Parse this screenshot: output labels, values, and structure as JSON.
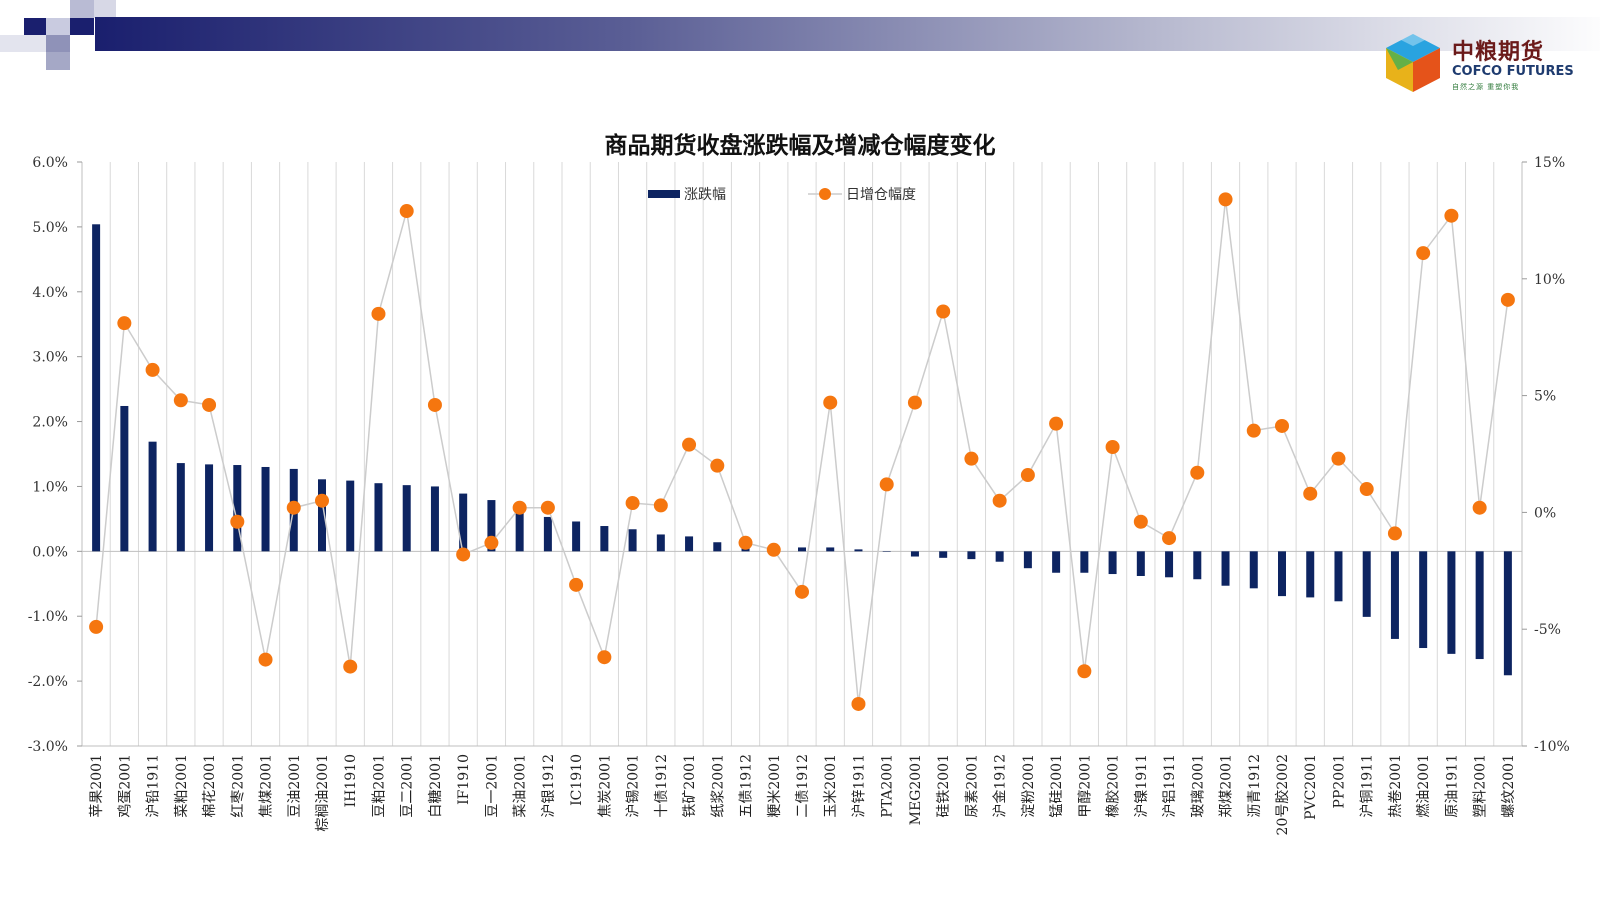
{
  "branding": {
    "company_cn": "中粮期货",
    "company_en": "COFCO FUTURES",
    "tagline": "自然之源  重塑你我",
    "accent": "#1a1f6e"
  },
  "chart_data": {
    "type": "bar+line",
    "title": "商品期货收盘涨跌幅及增减仓幅度变化",
    "legend": [
      "涨跌幅",
      "日增仓幅度"
    ],
    "legend_position": "top-center",
    "bar_color": "#0d2461",
    "line_color": "#cccccc",
    "marker_color": "#f5760f",
    "y_left": {
      "min": -3.0,
      "max": 6.0,
      "step": 1.0,
      "tick_labels": [
        "-3.0%",
        "-2.0%",
        "-1.0%",
        "0.0%",
        "1.0%",
        "2.0%",
        "3.0%",
        "4.0%",
        "5.0%",
        "6.0%"
      ]
    },
    "y_right": {
      "min": -10,
      "max": 15,
      "step": 5,
      "tick_labels": [
        "-10%",
        "-5%",
        "0%",
        "5%",
        "10%",
        "15%"
      ]
    },
    "categories": [
      "苹果2001",
      "鸡蛋2001",
      "沪铅1911",
      "菜粕2001",
      "棉花2001",
      "红枣2001",
      "焦煤2001",
      "豆油2001",
      "棕榈油2001",
      "IH1910",
      "豆粕2001",
      "豆二2001",
      "白糖2001",
      "IF1910",
      "豆一2001",
      "菜油2001",
      "沪银1912",
      "IC1910",
      "焦炭2001",
      "沪锡2001",
      "十债1912",
      "铁矿2001",
      "纸浆2001",
      "五债1912",
      "粳米2001",
      "二债1912",
      "玉米2001",
      "沪锌1911",
      "PTA2001",
      "MEG2001",
      "硅铁2001",
      "尿素2001",
      "沪金1912",
      "淀粉2001",
      "锰硅2001",
      "甲醇2001",
      "橡胶2001",
      "沪镍1911",
      "沪铝1911",
      "玻璃2001",
      "郑煤2001",
      "沥青1912",
      "20号胶2002",
      "PVC2001",
      "PP2001",
      "沪铜1911",
      "热卷2001",
      "燃油2001",
      "原油1911",
      "塑料2001",
      "螺纹2001"
    ],
    "series": [
      {
        "name": "涨跌幅",
        "type": "bar",
        "axis": "left",
        "unit": "%",
        "values": [
          5.04,
          2.24,
          1.69,
          1.36,
          1.34,
          1.33,
          1.3,
          1.27,
          1.11,
          1.09,
          1.05,
          1.02,
          1.0,
          0.89,
          0.79,
          0.63,
          0.53,
          0.46,
          0.39,
          0.34,
          0.26,
          0.23,
          0.14,
          0.09,
          0.08,
          0.06,
          0.06,
          0.03,
          0.0,
          -0.08,
          -0.1,
          -0.12,
          -0.16,
          -0.26,
          -0.33,
          -0.33,
          -0.35,
          -0.38,
          -0.4,
          -0.43,
          -0.53,
          -0.57,
          -0.69,
          -0.71,
          -0.77,
          -1.01,
          -1.35,
          -1.49,
          -1.58,
          -1.66,
          -1.91
        ]
      },
      {
        "name": "日增仓幅度",
        "type": "line",
        "axis": "right",
        "unit": "%",
        "values": [
          -4.9,
          8.1,
          6.1,
          4.8,
          4.6,
          -0.4,
          -6.3,
          0.2,
          0.5,
          -6.6,
          8.5,
          12.9,
          4.6,
          -1.8,
          -1.3,
          0.2,
          0.2,
          -3.1,
          -6.2,
          0.4,
          0.3,
          2.9,
          2.0,
          -1.3,
          -1.6,
          -3.4,
          4.7,
          -8.2,
          1.2,
          4.7,
          8.6,
          2.3,
          0.5,
          1.6,
          3.8,
          -6.8,
          2.8,
          -0.4,
          -1.1,
          1.7,
          13.4,
          3.5,
          3.7,
          0.8,
          2.3,
          1.0,
          -0.9,
          11.1,
          12.7,
          0.2,
          9.1
        ]
      }
    ]
  }
}
